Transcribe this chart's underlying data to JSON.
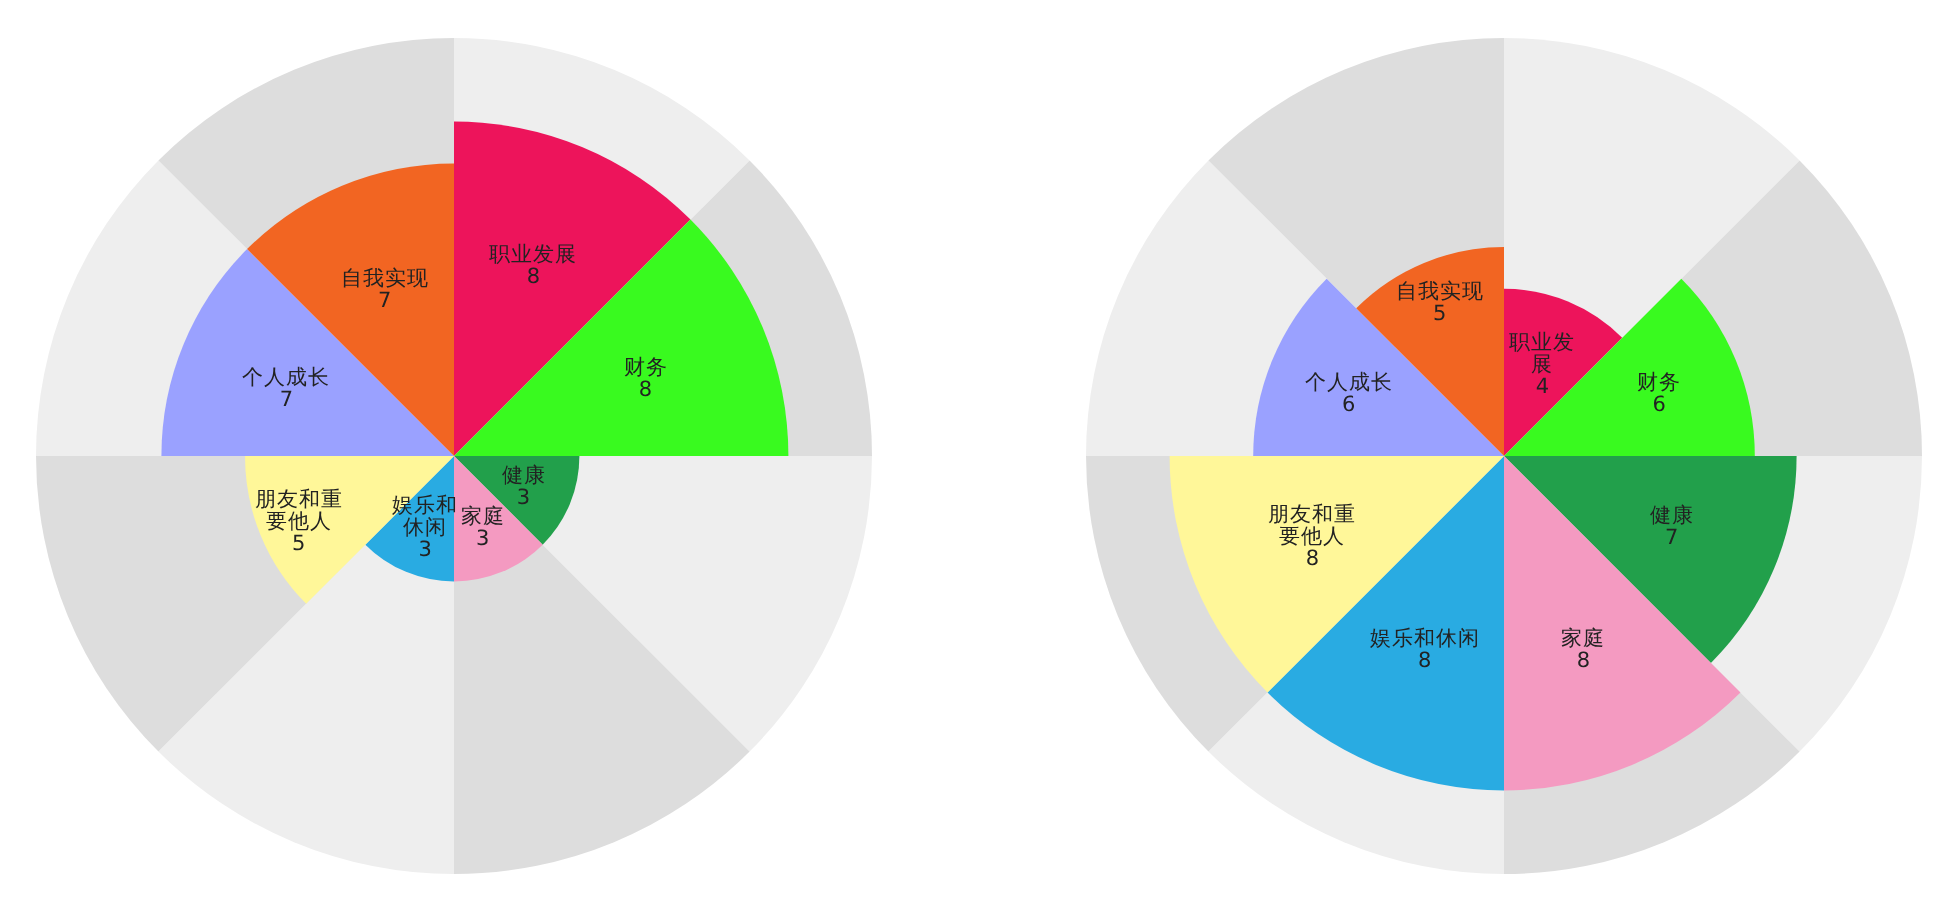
{
  "chart_data": [
    {
      "type": "other",
      "categories": [
        "职业发展",
        "财务",
        "健康",
        "家庭",
        "娱乐和休闲",
        "朋友和重要他人",
        "个人成长",
        "自我实现"
      ],
      "values": [
        8,
        8,
        3,
        3,
        3,
        5,
        7,
        7
      ],
      "colors": [
        "#ed145b",
        "#39fa1f",
        "#22a04b",
        "#f49ac1",
        "#29abe2",
        "#fff799",
        "#9aa1ff",
        "#f26522"
      ],
      "data_labels": true
    },
    {
      "type": "other",
      "categories": [
        "职业发展",
        "财务",
        "健康",
        "家庭",
        "娱乐和休闲",
        "朋友和重要他人",
        "个人成长",
        "自我实现"
      ],
      "values": [
        4,
        6,
        7,
        8,
        8,
        8,
        6,
        5
      ],
      "colors": [
        "#ed145b",
        "#39fa1f",
        "#22a04b",
        "#f49ac1",
        "#29abe2",
        "#fff799",
        "#9aa1ff",
        "#f26522"
      ],
      "data_labels": true
    }
  ]
}
